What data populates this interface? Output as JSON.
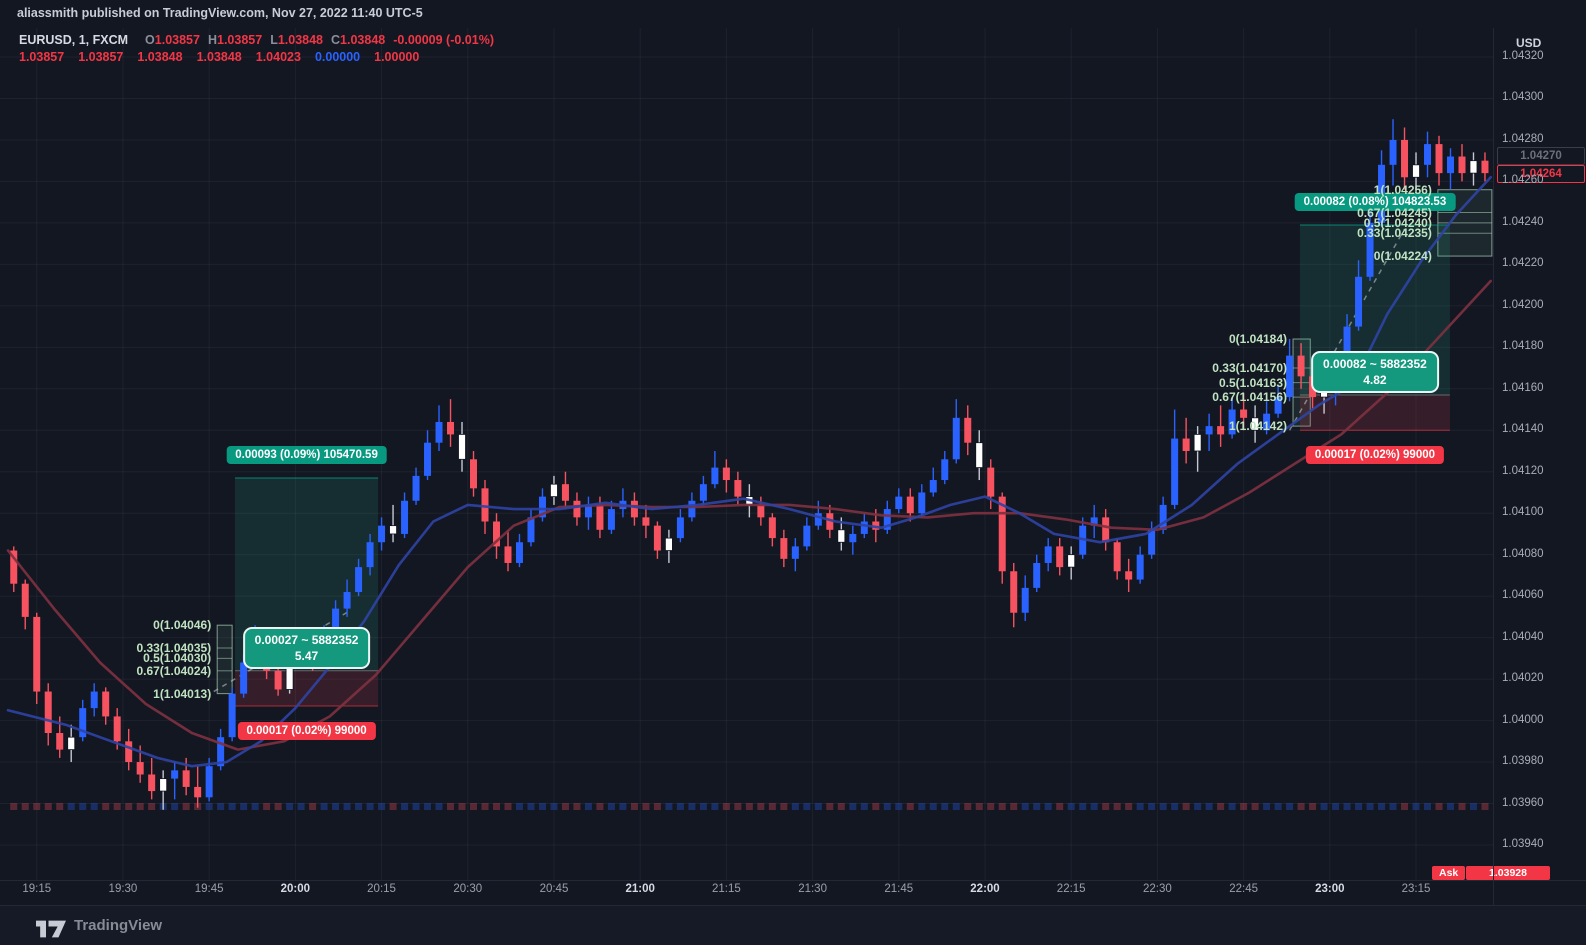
{
  "header": {
    "byline": "aliassmith published on TradingView.com, Nov 27, 2022 11:40 UTC-5"
  },
  "legend": {
    "symbol": "EURUSD, 1, FXCM",
    "o_label": "O",
    "o": "1.03857",
    "h_label": "H",
    "h": "1.03857",
    "l_label": "L",
    "l": "1.03848",
    "c_label": "C",
    "c": "1.03848",
    "change": "-0.00009 (-0.01%)",
    "row2": [
      {
        "v": "1.03857",
        "color": "#f23645"
      },
      {
        "v": "1.03857",
        "color": "#f23645"
      },
      {
        "v": "1.03848",
        "color": "#f23645"
      },
      {
        "v": "1.03848",
        "color": "#f23645"
      },
      {
        "v": "1.04023",
        "color": "#f23645"
      },
      {
        "v": "0.00000",
        "color": "#2962ff"
      },
      {
        "v": "1.00000",
        "color": "#f23645"
      }
    ]
  },
  "price_axis": {
    "currency": "USD",
    "ghost_label": "1.04270",
    "last_price": "1.04264",
    "ask_label": "Ask",
    "ask_price": "1.03928"
  },
  "footer": {
    "brand": "TradingView"
  },
  "colors": {
    "up": "#2962ff",
    "down": "#f7525f",
    "white_candle": "#ffffff",
    "ma_fast": "#2f43a3",
    "ma_slow": "#7d3140",
    "profit_green": "#089981",
    "loss_red": "#f23645",
    "fib_text": "#bfe3c0"
  },
  "tools": {
    "positions": [
      {
        "name": "long-position-1",
        "x1_min": 39.5,
        "x2_min": 64.4,
        "entry": 1.04024,
        "target": 1.04117,
        "stop": 1.04007,
        "target_label": "0.00093 (0.09%) 105470.59",
        "stop_label": "0.00017 (0.02%) 99000",
        "tooltip_line1": "0.00027 ~ 5882352",
        "tooltip_line2": "5.47"
      },
      {
        "name": "long-position-2",
        "x1_min": 224.8,
        "x2_min": 250.9,
        "entry": 1.04157,
        "target": 1.04239,
        "stop": 1.0414,
        "target_label": "0.00082 (0.08%) 104823.53",
        "stop_label": "0.00017 (0.02%) 99000",
        "tooltip_line1": "0.00082 ~ 5882352",
        "tooltip_line2": "4.82"
      }
    ],
    "fibs": [
      {
        "name": "fib-retracement-1",
        "x1_min": 36.4,
        "x2_min": 39.0,
        "levels": [
          {
            "label": "0(1.04046)",
            "p": 1.04046
          },
          {
            "label": "0.33(1.04035)",
            "p": 1.04035
          },
          {
            "label": "0.5(1.04030)",
            "p": 1.0403
          },
          {
            "label": "0.67(1.04024)",
            "p": 1.04024
          },
          {
            "label": "1(1.04013)",
            "p": 1.04013
          }
        ]
      },
      {
        "name": "fib-retracement-2",
        "x1_min": 223.6,
        "x2_min": 226.6,
        "levels": [
          {
            "label": "0(1.04184)",
            "p": 1.04184
          },
          {
            "label": "0.33(1.04170)",
            "p": 1.0417
          },
          {
            "label": "0.5(1.04163)",
            "p": 1.04163
          },
          {
            "label": "0.67(1.04156)",
            "p": 1.04156
          },
          {
            "label": "1(1.04142)",
            "p": 1.04142
          }
        ]
      },
      {
        "name": "fib-retracement-3",
        "x1_min": 248.8,
        "x2_min": 258.2,
        "levels": [
          {
            "label": "1(1.04256)",
            "p": 1.04256
          },
          {
            "label": "0.67(1.04245)",
            "p": 1.04245
          },
          {
            "label": "0.5(1.04240)",
            "p": 1.0424
          },
          {
            "label": "0.33(1.04235)",
            "p": 1.04235
          },
          {
            "label": "0(1.04224)",
            "p": 1.04224
          }
        ]
      }
    ],
    "projection_lines": [
      {
        "x1_min": 35.8,
        "p1": 1.04014,
        "x2_min": 59.5,
        "p2": 1.04053
      },
      {
        "x1_min": 223.0,
        "p1": 1.0414,
        "x2_min": 243.0,
        "p2": 1.04237
      }
    ]
  },
  "chart_data": {
    "type": "candlestick",
    "title": "EURUSD 1-minute, FXCM",
    "start_time": "19:10",
    "candle_interval_minutes": 2,
    "price_encoding": {
      "base": 1.03,
      "scale": 1e-05
    },
    "y_axis": {
      "ticks": [
        "1.04320",
        "1.04300",
        "1.04280",
        "1.04260",
        "1.04240",
        "1.04220",
        "1.04200",
        "1.04180",
        "1.04160",
        "1.04140",
        "1.04120",
        "1.04100",
        "1.04080",
        "1.04060",
        "1.04040",
        "1.04020",
        "1.04000",
        "1.03980",
        "1.03960",
        "1.03940"
      ],
      "top": 1.0432,
      "bottom": 1.03925
    },
    "x_axis": {
      "ticks": [
        {
          "label": "19:15",
          "minute": 5,
          "major": false
        },
        {
          "label": "19:30",
          "minute": 20,
          "major": false
        },
        {
          "label": "19:45",
          "minute": 35,
          "major": false
        },
        {
          "label": "20:00",
          "minute": 50,
          "major": true
        },
        {
          "label": "20:15",
          "minute": 65,
          "major": false
        },
        {
          "label": "20:30",
          "minute": 80,
          "major": false
        },
        {
          "label": "20:45",
          "minute": 95,
          "major": false
        },
        {
          "label": "21:00",
          "minute": 110,
          "major": true
        },
        {
          "label": "21:15",
          "minute": 125,
          "major": false
        },
        {
          "label": "21:30",
          "minute": 140,
          "major": false
        },
        {
          "label": "21:45",
          "minute": 155,
          "major": false
        },
        {
          "label": "22:00",
          "minute": 170,
          "major": true
        },
        {
          "label": "22:15",
          "minute": 185,
          "major": false
        },
        {
          "label": "22:30",
          "minute": 200,
          "major": false
        },
        {
          "label": "22:45",
          "minute": 215,
          "major": false
        },
        {
          "label": "23:00",
          "minute": 230,
          "major": true
        },
        {
          "label": "23:15",
          "minute": 245,
          "major": false
        }
      ]
    },
    "candles": [
      [
        1082,
        1084,
        1062,
        1066
      ],
      [
        1066,
        1068,
        1044,
        1050
      ],
      [
        1050,
        1052,
        1008,
        1014
      ],
      [
        1014,
        1018,
        988,
        994
      ],
      [
        994,
        1002,
        982,
        986
      ],
      [
        986,
        998,
        980,
        992,
        1
      ],
      [
        992,
        1010,
        990,
        1006
      ],
      [
        1006,
        1018,
        1002,
        1014
      ],
      [
        1014,
        1016,
        998,
        1002
      ],
      [
        1002,
        1006,
        986,
        990
      ],
      [
        990,
        996,
        976,
        980
      ],
      [
        980,
        988,
        970,
        974
      ],
      [
        974,
        982,
        962,
        966
      ],
      [
        966,
        976,
        957,
        972,
        1
      ],
      [
        972,
        980,
        962,
        976
      ],
      [
        976,
        982,
        964,
        968
      ],
      [
        968,
        978,
        958,
        963
      ],
      [
        963,
        982,
        961,
        978
      ],
      [
        978,
        996,
        976,
        992
      ],
      [
        992,
        1016,
        990,
        1013
      ],
      [
        1013,
        1032,
        1011,
        1028
      ],
      [
        1028,
        1046,
        1026,
        1041
      ],
      [
        1041,
        1043,
        1020,
        1024
      ],
      [
        1024,
        1028,
        1012,
        1015
      ],
      [
        1015,
        1034,
        1013,
        1030,
        1
      ],
      [
        1030,
        1044,
        1028,
        1038
      ],
      [
        1038,
        1042,
        1024,
        1028
      ],
      [
        1028,
        1046,
        1026,
        1042
      ],
      [
        1042,
        1058,
        1040,
        1054
      ],
      [
        1054,
        1068,
        1050,
        1062
      ],
      [
        1062,
        1078,
        1060,
        1074
      ],
      [
        1074,
        1090,
        1070,
        1086
      ],
      [
        1086,
        1098,
        1082,
        1094
      ],
      [
        1094,
        1104,
        1086,
        1090,
        1
      ],
      [
        1090,
        1110,
        1088,
        1106
      ],
      [
        1106,
        1122,
        1104,
        1118
      ],
      [
        1118,
        1140,
        1116,
        1134
      ],
      [
        1134,
        1152,
        1130,
        1144
      ],
      [
        1144,
        1155,
        1132,
        1138
      ],
      [
        1138,
        1144,
        1120,
        1126,
        1
      ],
      [
        1126,
        1130,
        1108,
        1112
      ],
      [
        1112,
        1116,
        1090,
        1096
      ],
      [
        1096,
        1100,
        1078,
        1084
      ],
      [
        1084,
        1092,
        1072,
        1076
      ],
      [
        1076,
        1090,
        1074,
        1086
      ],
      [
        1086,
        1102,
        1084,
        1098
      ],
      [
        1098,
        1112,
        1096,
        1108
      ],
      [
        1108,
        1118,
        1104,
        1114,
        1
      ],
      [
        1114,
        1120,
        1102,
        1106
      ],
      [
        1106,
        1110,
        1094,
        1098
      ],
      [
        1098,
        1108,
        1092,
        1104
      ],
      [
        1104,
        1108,
        1088,
        1092
      ],
      [
        1092,
        1106,
        1090,
        1102
      ],
      [
        1102,
        1112,
        1098,
        1106
      ],
      [
        1106,
        1110,
        1094,
        1098
      ],
      [
        1098,
        1104,
        1088,
        1094
      ],
      [
        1094,
        1096,
        1078,
        1082
      ],
      [
        1082,
        1092,
        1076,
        1088,
        1
      ],
      [
        1088,
        1102,
        1086,
        1098
      ],
      [
        1098,
        1110,
        1096,
        1106
      ],
      [
        1106,
        1118,
        1104,
        1114
      ],
      [
        1114,
        1130,
        1112,
        1122
      ],
      [
        1122,
        1126,
        1110,
        1116
      ],
      [
        1116,
        1120,
        1104,
        1108
      ],
      [
        1108,
        1114,
        1098,
        1104,
        1
      ],
      [
        1104,
        1108,
        1094,
        1098
      ],
      [
        1098,
        1100,
        1084,
        1088
      ],
      [
        1088,
        1092,
        1074,
        1078
      ],
      [
        1078,
        1088,
        1072,
        1084
      ],
      [
        1084,
        1098,
        1082,
        1094
      ],
      [
        1094,
        1106,
        1092,
        1100
      ],
      [
        1100,
        1104,
        1088,
        1092
      ],
      [
        1092,
        1098,
        1082,
        1086,
        1
      ],
      [
        1086,
        1094,
        1080,
        1090
      ],
      [
        1090,
        1100,
        1088,
        1096
      ],
      [
        1096,
        1102,
        1086,
        1092
      ],
      [
        1092,
        1106,
        1090,
        1102
      ],
      [
        1102,
        1112,
        1100,
        1108
      ],
      [
        1108,
        1112,
        1096,
        1100
      ],
      [
        1100,
        1114,
        1098,
        1110
      ],
      [
        1110,
        1122,
        1108,
        1116
      ],
      [
        1116,
        1130,
        1114,
        1126
      ],
      [
        1126,
        1155,
        1124,
        1146
      ],
      [
        1146,
        1152,
        1128,
        1134
      ],
      [
        1134,
        1140,
        1116,
        1122,
        1
      ],
      [
        1122,
        1126,
        1102,
        1108
      ],
      [
        1108,
        1110,
        1066,
        1072
      ],
      [
        1072,
        1076,
        1045,
        1052
      ],
      [
        1052,
        1070,
        1048,
        1064
      ],
      [
        1064,
        1080,
        1062,
        1076
      ],
      [
        1076,
        1088,
        1072,
        1084
      ],
      [
        1084,
        1088,
        1070,
        1074
      ],
      [
        1074,
        1084,
        1068,
        1080,
        1
      ],
      [
        1080,
        1098,
        1078,
        1094
      ],
      [
        1094,
        1104,
        1088,
        1098
      ],
      [
        1098,
        1102,
        1082,
        1086
      ],
      [
        1086,
        1088,
        1068,
        1072
      ],
      [
        1072,
        1078,
        1062,
        1068
      ],
      [
        1068,
        1084,
        1066,
        1080
      ],
      [
        1080,
        1096,
        1078,
        1092
      ],
      [
        1092,
        1108,
        1090,
        1104
      ],
      [
        1104,
        1150,
        1102,
        1136
      ],
      [
        1136,
        1146,
        1124,
        1130
      ],
      [
        1130,
        1142,
        1120,
        1138,
        1
      ],
      [
        1138,
        1148,
        1130,
        1142
      ],
      [
        1142,
        1152,
        1132,
        1138
      ],
      [
        1138,
        1156,
        1136,
        1150
      ],
      [
        1150,
        1158,
        1140,
        1146
      ],
      [
        1146,
        1152,
        1134,
        1140,
        1
      ],
      [
        1140,
        1154,
        1138,
        1148
      ],
      [
        1148,
        1162,
        1146,
        1156
      ],
      [
        1156,
        1184,
        1154,
        1176
      ],
      [
        1176,
        1182,
        1160,
        1166
      ],
      [
        1166,
        1172,
        1150,
        1156
      ],
      [
        1156,
        1168,
        1148,
        1160,
        1
      ],
      [
        1160,
        1172,
        1152,
        1164
      ],
      [
        1164,
        1196,
        1162,
        1190
      ],
      [
        1190,
        1222,
        1188,
        1214
      ],
      [
        1214,
        1246,
        1212,
        1240
      ],
      [
        1240,
        1275,
        1238,
        1268
      ],
      [
        1268,
        1290,
        1258,
        1280
      ],
      [
        1280,
        1286,
        1256,
        1262
      ],
      [
        1262,
        1274,
        1252,
        1268,
        1
      ],
      [
        1268,
        1284,
        1262,
        1278
      ],
      [
        1278,
        1282,
        1258,
        1264
      ],
      [
        1264,
        1276,
        1256,
        1272
      ],
      [
        1272,
        1278,
        1260,
        1264
      ],
      [
        1264,
        1274,
        1258,
        1270,
        1
      ],
      [
        1270,
        1274,
        1260,
        1264
      ]
    ],
    "ma_fast_blue": [
      [
        0,
        1005
      ],
      [
        10,
        998
      ],
      [
        18,
        990
      ],
      [
        26,
        982
      ],
      [
        32,
        978
      ],
      [
        38,
        980
      ],
      [
        44,
        990
      ],
      [
        50,
        1006
      ],
      [
        56,
        1026
      ],
      [
        62,
        1048
      ],
      [
        68,
        1075
      ],
      [
        74,
        1096
      ],
      [
        80,
        1104
      ],
      [
        88,
        1102
      ],
      [
        96,
        1102
      ],
      [
        104,
        1105
      ],
      [
        112,
        1102
      ],
      [
        120,
        1104
      ],
      [
        128,
        1107
      ],
      [
        136,
        1102
      ],
      [
        144,
        1096
      ],
      [
        152,
        1093
      ],
      [
        158,
        1098
      ],
      [
        164,
        1104
      ],
      [
        170,
        1108
      ],
      [
        176,
        1100
      ],
      [
        182,
        1090
      ],
      [
        190,
        1086
      ],
      [
        198,
        1090
      ],
      [
        206,
        1104
      ],
      [
        214,
        1124
      ],
      [
        222,
        1140
      ],
      [
        228,
        1152
      ],
      [
        234,
        1162
      ],
      [
        240,
        1196
      ],
      [
        246,
        1222
      ],
      [
        252,
        1244
      ],
      [
        258,
        1262
      ]
    ],
    "ma_slow_red": [
      [
        0,
        1082
      ],
      [
        8,
        1054
      ],
      [
        16,
        1028
      ],
      [
        24,
        1008
      ],
      [
        32,
        994
      ],
      [
        40,
        986
      ],
      [
        48,
        990
      ],
      [
        56,
        1002
      ],
      [
        64,
        1022
      ],
      [
        72,
        1048
      ],
      [
        80,
        1074
      ],
      [
        88,
        1094
      ],
      [
        96,
        1103
      ],
      [
        104,
        1104
      ],
      [
        112,
        1103
      ],
      [
        120,
        1103
      ],
      [
        128,
        1104
      ],
      [
        136,
        1104
      ],
      [
        144,
        1102
      ],
      [
        152,
        1099
      ],
      [
        160,
        1098
      ],
      [
        168,
        1100
      ],
      [
        176,
        1100
      ],
      [
        184,
        1097
      ],
      [
        192,
        1093
      ],
      [
        200,
        1092
      ],
      [
        208,
        1098
      ],
      [
        216,
        1110
      ],
      [
        224,
        1124
      ],
      [
        232,
        1138
      ],
      [
        240,
        1158
      ],
      [
        248,
        1182
      ],
      [
        258,
        1212
      ]
    ]
  }
}
